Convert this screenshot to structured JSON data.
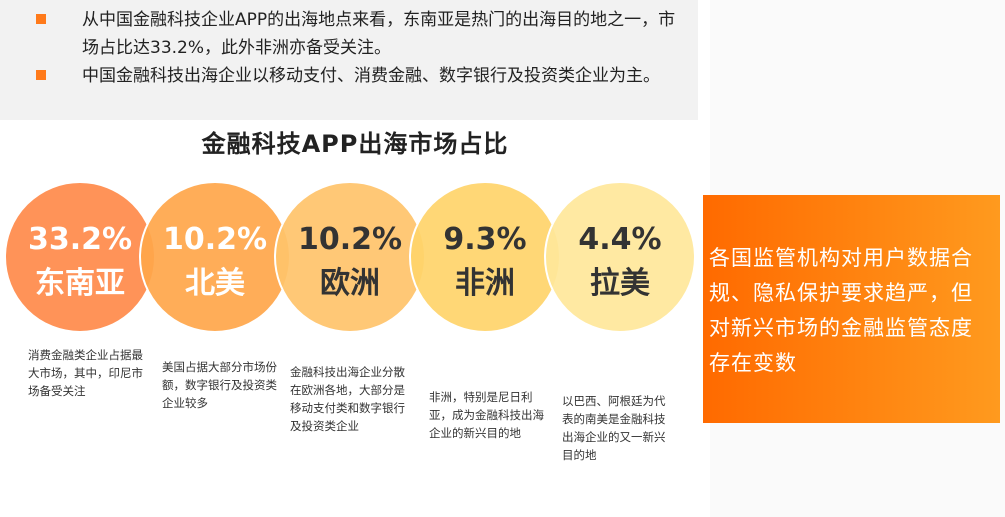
{
  "bullets": [
    "从中国金融科技企业APP的出海地点来看，东南亚是热门的出海目的地之一，市场占比达33.2%，此外非洲亦备受关注。",
    "中国金融科技出海企业以移动支付、消费金融、数字银行及投资类企业为主。"
  ],
  "chart_data": {
    "type": "bubble",
    "title": "金融科技APP出海市场占比",
    "categories": [
      "东南亚",
      "北美",
      "欧洲",
      "非洲",
      "拉美"
    ],
    "values": [
      33.2,
      10.2,
      10.2,
      9.3,
      4.4
    ],
    "value_labels": [
      "33.2%",
      "10.2%",
      "10.2%",
      "9.3%",
      "4.4%"
    ],
    "colors": [
      "#ff8a4a",
      "#ffa64a",
      "#ffc36a",
      "#ffd46a",
      "#ffe79a"
    ],
    "label_colors": [
      "#ffffff",
      "#ffffff",
      "#333333",
      "#333333",
      "#333333"
    ],
    "descriptions": [
      "消费金融类企业占据最大市场，其中，印尼市场备受关注",
      "美国占据大部分市场份额，数字银行及投资类企业较多",
      "金融科技出海企业分散在欧洲各地，大部分是移动支付类和数字银行及投资类企业",
      "非洲，特别是尼日利亚，成为金融科技出海企业的新兴目的地",
      "以巴西、阿根廷为代表的南美是金融科技出海企业的又一新兴目的地"
    ]
  },
  "callout": {
    "text": "各国监管机构对用户数据合规、隐私保护要求趋严，但对新兴市场的金融监管态度存在变数"
  }
}
